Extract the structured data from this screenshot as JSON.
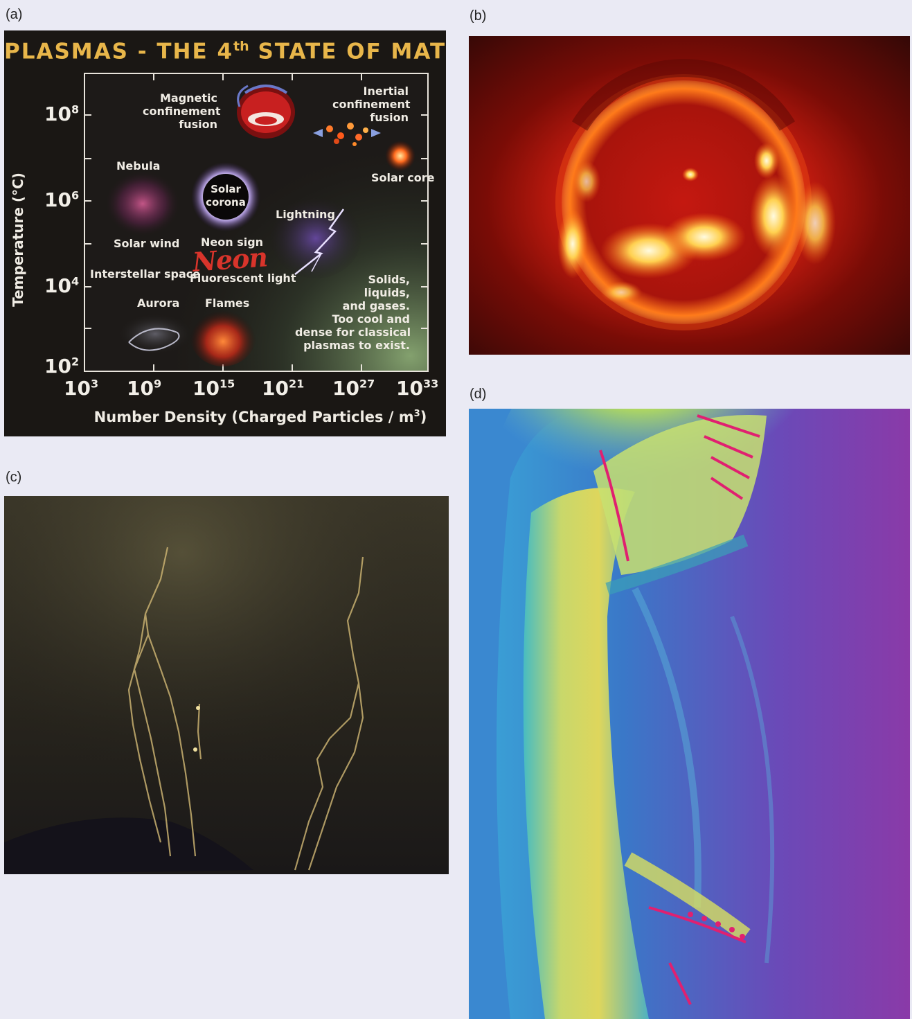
{
  "panels": {
    "a": {
      "label": "(a)",
      "title_main": "PLASMAS - THE 4",
      "title_sup": "th",
      "title_end": " STATE OF MATTER",
      "y_axis_label": "Temperature (°C)",
      "x_axis_label_main": "Number Density (Charged Particles / m",
      "x_axis_label_sup": "3",
      "x_axis_label_end": ")",
      "y_ticks": [
        {
          "base": "10",
          "exp": "8"
        },
        {
          "base": "10",
          "exp": "6"
        },
        {
          "base": "10",
          "exp": "4"
        },
        {
          "base": "10",
          "exp": "2"
        }
      ],
      "x_ticks": [
        {
          "base": "10",
          "exp": "3"
        },
        {
          "base": "10",
          "exp": "9"
        },
        {
          "base": "10",
          "exp": "15"
        },
        {
          "base": "10",
          "exp": "21"
        },
        {
          "base": "10",
          "exp": "27"
        },
        {
          "base": "10",
          "exp": "33"
        }
      ],
      "labels": {
        "magnetic": [
          "Magnetic",
          "confinement",
          "fusion"
        ],
        "inertial": [
          "Inertial",
          "confinement",
          "fusion"
        ],
        "nebula": "Nebula",
        "solar_corona": [
          "Solar",
          "corona"
        ],
        "solar_core": "Solar core",
        "lightning": "Lightning",
        "solar_wind": "Solar wind",
        "neon_sign": "Neon sign",
        "neon_script": "Neon",
        "interstellar": "Interstellar space",
        "fluorescent": "Fluorescent light",
        "aurora": "Aurora",
        "flames": "Flames",
        "solids": [
          "Solids,",
          "liquids,",
          "and gases.",
          "Too cool and",
          "dense for classical",
          "plasmas to exist."
        ]
      }
    },
    "b": {
      "label": "(b)"
    },
    "c": {
      "label": "(c)"
    },
    "d": {
      "label": "(d)"
    }
  },
  "colors": {
    "title": "#e8b64a",
    "panel_a_bg": "#1a1714",
    "page_bg": "#eaeaf4"
  }
}
